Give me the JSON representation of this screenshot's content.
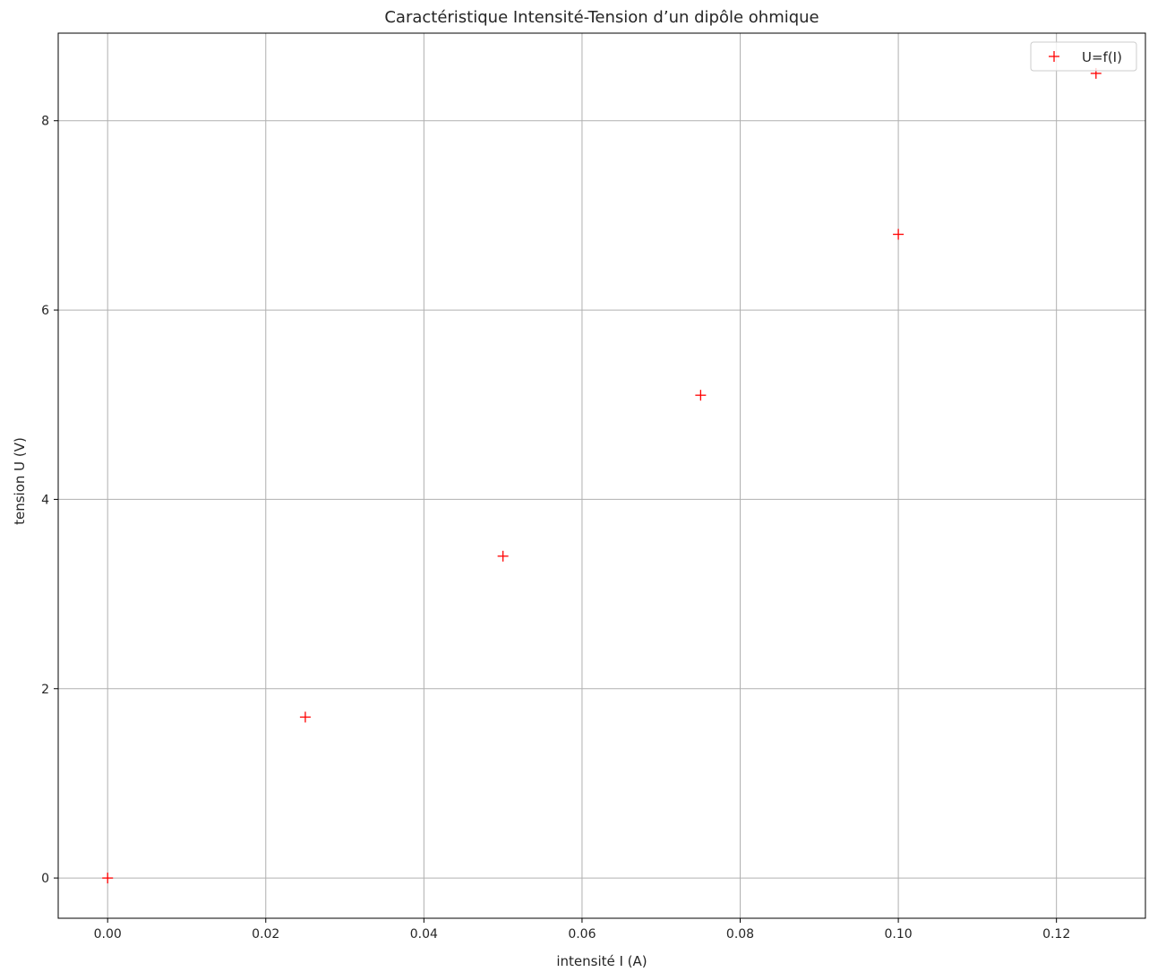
{
  "chart_data": {
    "type": "scatter",
    "title": "Caractéristique Intensité-Tension d’un dipôle ohmique",
    "xlabel": "intensité I (A)",
    "ylabel": "tension U (V)",
    "xlim": [
      -0.00625,
      0.13125
    ],
    "ylim": [
      -0.425,
      8.925
    ],
    "xticks": [
      0.0,
      0.02,
      0.04,
      0.06,
      0.08,
      0.1,
      0.12
    ],
    "xtick_labels": [
      "0.00",
      "0.02",
      "0.04",
      "0.06",
      "0.08",
      "0.10",
      "0.12"
    ],
    "yticks": [
      0,
      2,
      4,
      6,
      8
    ],
    "ytick_labels": [
      "0",
      "2",
      "4",
      "6",
      "8"
    ],
    "grid": true,
    "legend_position": "top-right",
    "series": [
      {
        "name": "U=f(I)",
        "marker": "plus",
        "color": "#ff0000",
        "x": [
          0.0,
          0.025,
          0.05,
          0.075,
          0.1,
          0.125
        ],
        "y": [
          0.0,
          1.7,
          3.4,
          5.1,
          6.8,
          8.5
        ]
      }
    ]
  }
}
